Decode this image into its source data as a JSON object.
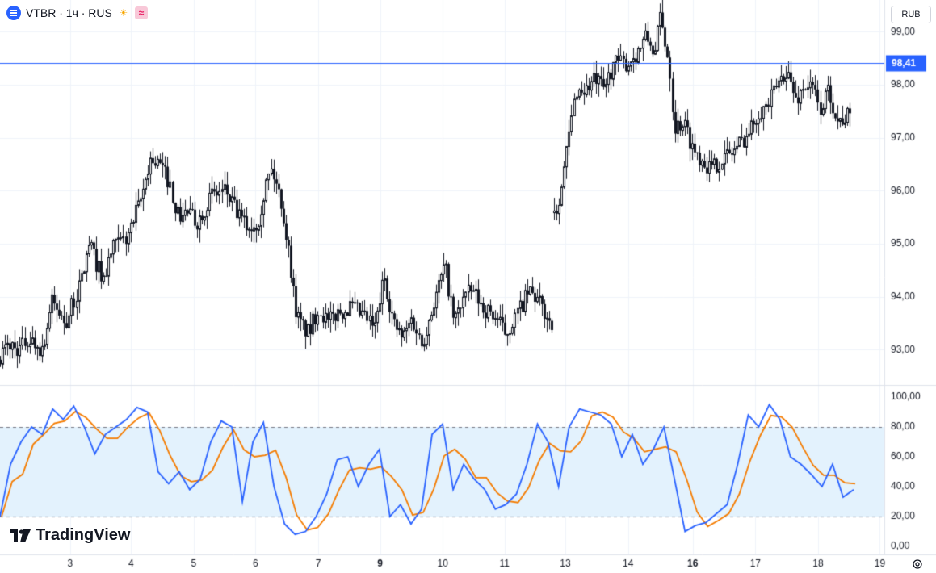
{
  "header": {
    "symbol": "VTBR · 1ч · RUS",
    "icons": [
      "menu-icon",
      "sun-icon",
      "wave-icon"
    ]
  },
  "currency": "RUB",
  "brand": "TradingView",
  "colors": {
    "up": "#131722",
    "down": "#131722",
    "price_line": "#2962ff",
    "k_line": "#2962ff",
    "d_line": "#f57c00",
    "band_fill": "#e3f2fd"
  },
  "chart_data": [
    {
      "type": "candlestick",
      "title": "",
      "y_ticks": [
        "99,00",
        "98,00",
        "97,00",
        "96,00",
        "95,00",
        "94,00",
        "93,00"
      ],
      "ylim": [
        92.35,
        99.6
      ],
      "current_price": 98.41,
      "current_price_label": "98,41",
      "x_ticks": [
        {
          "label": "3",
          "bold": false,
          "pos": 0.075
        },
        {
          "label": "4",
          "bold": false,
          "pos": 0.14
        },
        {
          "label": "5",
          "bold": false,
          "pos": 0.207
        },
        {
          "label": "6",
          "bold": false,
          "pos": 0.273
        },
        {
          "label": "7",
          "bold": false,
          "pos": 0.34
        },
        {
          "label": "9",
          "bold": true,
          "pos": 0.406
        },
        {
          "label": "10",
          "bold": false,
          "pos": 0.473
        },
        {
          "label": "11",
          "bold": false,
          "pos": 0.539
        },
        {
          "label": "13",
          "bold": false,
          "pos": 0.604
        },
        {
          "label": "14",
          "bold": false,
          "pos": 0.671
        },
        {
          "label": "16",
          "bold": true,
          "pos": 0.74
        },
        {
          "label": "17",
          "bold": false,
          "pos": 0.807
        },
        {
          "label": "18",
          "bold": false,
          "pos": 0.874
        },
        {
          "label": "19",
          "bold": false,
          "pos": 0.94
        }
      ],
      "close_path": [
        [
          0,
          92.9
        ],
        [
          0.01,
          93.1
        ],
        [
          0.02,
          93.0
        ],
        [
          0.03,
          93.2
        ],
        [
          0.045,
          93.0
        ],
        [
          0.055,
          93.9
        ],
        [
          0.07,
          93.5
        ],
        [
          0.085,
          94.2
        ],
        [
          0.095,
          95.0
        ],
        [
          0.11,
          94.3
        ],
        [
          0.12,
          94.9
        ],
        [
          0.135,
          95.1
        ],
        [
          0.15,
          95.8
        ],
        [
          0.16,
          96.6
        ],
        [
          0.17,
          96.5
        ],
        [
          0.18,
          96.2
        ],
        [
          0.19,
          95.5
        ],
        [
          0.2,
          95.6
        ],
        [
          0.21,
          95.4
        ],
        [
          0.225,
          95.9
        ],
        [
          0.24,
          96.0
        ],
        [
          0.255,
          95.5
        ],
        [
          0.265,
          95.3
        ],
        [
          0.275,
          95.4
        ],
        [
          0.285,
          96.2
        ],
        [
          0.29,
          96.4
        ],
        [
          0.3,
          95.8
        ],
        [
          0.31,
          94.6
        ],
        [
          0.315,
          93.8
        ],
        [
          0.32,
          93.5
        ],
        [
          0.33,
          93.3
        ],
        [
          0.34,
          93.8
        ],
        [
          0.35,
          93.5
        ],
        [
          0.36,
          93.7
        ],
        [
          0.375,
          93.8
        ],
        [
          0.39,
          93.6
        ],
        [
          0.4,
          93.4
        ],
        [
          0.41,
          94.4
        ],
        [
          0.42,
          93.5
        ],
        [
          0.43,
          93.2
        ],
        [
          0.44,
          93.6
        ],
        [
          0.45,
          93.1
        ],
        [
          0.465,
          94.0
        ],
        [
          0.475,
          94.6
        ],
        [
          0.485,
          93.5
        ],
        [
          0.495,
          94.0
        ],
        [
          0.505,
          94.1
        ],
        [
          0.515,
          93.8
        ],
        [
          0.53,
          93.6
        ],
        [
          0.54,
          93.3
        ],
        [
          0.55,
          93.6
        ],
        [
          0.565,
          94.1
        ],
        [
          0.575,
          93.9
        ],
        [
          0.585,
          93.6
        ],
        [
          0.59,
          93.5
        ],
        null,
        [
          0.592,
          95.5
        ],
        [
          0.6,
          96.1
        ],
        [
          0.61,
          97.3
        ],
        [
          0.615,
          97.9
        ],
        [
          0.625,
          97.9
        ],
        [
          0.635,
          98.1
        ],
        [
          0.645,
          97.9
        ],
        [
          0.655,
          98.4
        ],
        [
          0.67,
          98.4
        ],
        [
          0.68,
          98.6
        ],
        [
          0.69,
          98.9
        ],
        [
          0.7,
          98.6
        ],
        [
          0.705,
          99.3
        ],
        [
          0.715,
          98.4
        ],
        [
          0.72,
          97.2
        ],
        [
          0.73,
          97.3
        ],
        [
          0.74,
          96.8
        ],
        [
          0.75,
          96.6
        ],
        [
          0.76,
          96.4
        ],
        [
          0.77,
          96.6
        ],
        [
          0.78,
          96.7
        ],
        [
          0.79,
          96.9
        ],
        [
          0.8,
          97.1
        ],
        [
          0.81,
          97.5
        ],
        [
          0.82,
          97.6
        ],
        [
          0.83,
          98.0
        ],
        [
          0.84,
          98.3
        ],
        [
          0.85,
          97.7
        ],
        [
          0.86,
          98.0
        ],
        [
          0.87,
          97.9
        ],
        [
          0.875,
          97.5
        ],
        [
          0.885,
          97.9
        ],
        [
          0.895,
          97.3
        ],
        [
          0.905,
          97.4
        ],
        [
          0.91,
          97.3
        ]
      ]
    },
    {
      "type": "line",
      "title": "",
      "y_ticks": [
        "100,00",
        "80,00",
        "60,00",
        "40,00",
        "20,00",
        "0,00"
      ],
      "ylim": [
        0,
        100
      ],
      "band": [
        20,
        80
      ],
      "series": [
        {
          "values": [
            20,
            55,
            70,
            80,
            75,
            92,
            85,
            94,
            80,
            62,
            75,
            80,
            85,
            93,
            90,
            50,
            42,
            50,
            38,
            45,
            70,
            84,
            80,
            30,
            70,
            83,
            40,
            15,
            8,
            10,
            20,
            35,
            58,
            60,
            40,
            55,
            65,
            20,
            28,
            15,
            25,
            75,
            82,
            38,
            55,
            45,
            38,
            25,
            28,
            35,
            55,
            82,
            70,
            40,
            80,
            92,
            90,
            88,
            82,
            60,
            75,
            55,
            65,
            80,
            45,
            10,
            14,
            16,
            22,
            28,
            55,
            88,
            80,
            95,
            85,
            60,
            55,
            48,
            40,
            55,
            33,
            38
          ]
        }
      ]
    }
  ]
}
